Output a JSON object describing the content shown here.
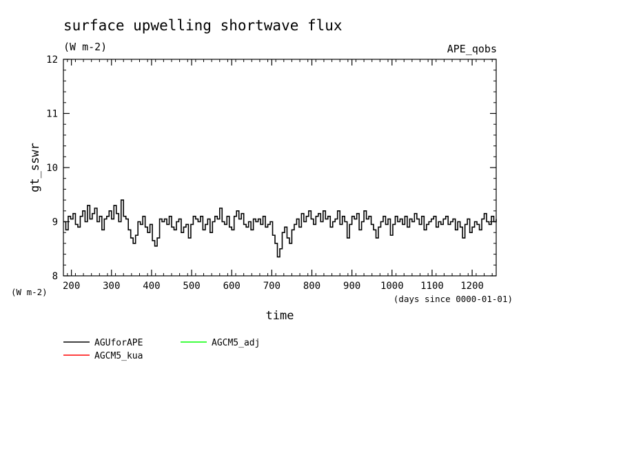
{
  "header": {
    "title": "surface upwelling shortwave flux",
    "units": "(W m-2)",
    "experiment": "APE_qobs"
  },
  "axis": {
    "ylabel": "gt_sswr",
    "yunits": "(W m-2)",
    "xlabel": "time",
    "xunits": "(days since 0000-01-01)"
  },
  "chart_data": {
    "type": "line",
    "title": "surface upwelling shortwave flux",
    "xlabel": "time",
    "ylabel": "gt_sswr",
    "xlim": [
      180,
      1260
    ],
    "ylim": [
      8,
      12
    ],
    "xticks": [
      200,
      300,
      400,
      500,
      600,
      700,
      800,
      900,
      1000,
      1100,
      1200
    ],
    "yticks": [
      8,
      9,
      10,
      11,
      12
    ],
    "grid": false,
    "legend_position": "bottom-left",
    "series": [
      {
        "name": "AGUforAPE",
        "color": "#000000",
        "x": [
          180,
          186,
          192,
          198,
          204,
          210,
          216,
          222,
          228,
          234,
          240,
          246,
          252,
          258,
          264,
          270,
          276,
          282,
          288,
          294,
          300,
          306,
          312,
          318,
          324,
          330,
          336,
          342,
          348,
          354,
          360,
          366,
          372,
          378,
          384,
          390,
          396,
          402,
          408,
          414,
          420,
          426,
          432,
          438,
          444,
          450,
          456,
          462,
          468,
          474,
          480,
          486,
          492,
          498,
          504,
          510,
          516,
          522,
          528,
          534,
          540,
          546,
          552,
          558,
          564,
          570,
          576,
          582,
          588,
          594,
          600,
          606,
          612,
          618,
          624,
          630,
          636,
          642,
          648,
          654,
          660,
          666,
          672,
          678,
          684,
          690,
          696,
          702,
          708,
          714,
          720,
          726,
          732,
          738,
          744,
          750,
          756,
          762,
          768,
          774,
          780,
          786,
          792,
          798,
          804,
          810,
          816,
          822,
          828,
          834,
          840,
          846,
          852,
          858,
          864,
          870,
          876,
          882,
          888,
          894,
          900,
          906,
          912,
          918,
          924,
          930,
          936,
          942,
          948,
          954,
          960,
          966,
          972,
          978,
          984,
          990,
          996,
          1002,
          1008,
          1014,
          1020,
          1026,
          1032,
          1038,
          1044,
          1050,
          1056,
          1062,
          1068,
          1074,
          1080,
          1086,
          1092,
          1098,
          1104,
          1110,
          1116,
          1122,
          1128,
          1134,
          1140,
          1146,
          1152,
          1158,
          1164,
          1170,
          1176,
          1182,
          1188,
          1194,
          1200,
          1206,
          1212,
          1218,
          1224,
          1230,
          1236,
          1242,
          1248,
          1254,
          1260
        ],
        "values": [
          9.0,
          8.85,
          9.1,
          9.05,
          9.15,
          8.95,
          8.9,
          9.1,
          9.2,
          9.0,
          9.3,
          9.05,
          9.15,
          9.25,
          9.0,
          9.1,
          8.85,
          9.05,
          9.1,
          9.2,
          9.05,
          9.3,
          9.15,
          9.0,
          9.4,
          9.1,
          9.05,
          8.85,
          8.7,
          8.6,
          8.75,
          9.0,
          8.95,
          9.1,
          8.9,
          8.8,
          8.95,
          8.65,
          8.55,
          8.7,
          9.05,
          9.0,
          9.05,
          8.95,
          9.1,
          8.9,
          8.85,
          9.0,
          9.05,
          8.8,
          8.9,
          8.95,
          8.7,
          8.95,
          9.1,
          9.05,
          9.0,
          9.1,
          8.85,
          8.95,
          9.05,
          8.8,
          9.0,
          9.1,
          9.05,
          9.25,
          9.0,
          8.95,
          9.1,
          8.9,
          8.85,
          9.1,
          9.2,
          9.05,
          9.15,
          8.95,
          8.9,
          9.0,
          8.85,
          9.05,
          9.0,
          9.05,
          8.95,
          9.1,
          8.9,
          8.95,
          9.0,
          8.75,
          8.6,
          8.35,
          8.5,
          8.8,
          8.9,
          8.7,
          8.6,
          8.85,
          8.95,
          9.05,
          8.9,
          9.15,
          9.0,
          9.1,
          9.2,
          9.05,
          8.95,
          9.1,
          9.15,
          9.0,
          9.2,
          9.05,
          9.1,
          8.9,
          9.0,
          9.05,
          9.2,
          8.95,
          9.1,
          9.0,
          8.7,
          8.95,
          9.1,
          9.05,
          9.15,
          8.85,
          9.0,
          9.2,
          9.05,
          9.1,
          8.95,
          8.85,
          8.7,
          8.9,
          9.0,
          9.1,
          8.95,
          9.05,
          8.75,
          8.95,
          9.1,
          9.0,
          9.05,
          8.95,
          9.1,
          8.9,
          9.05,
          9.0,
          9.15,
          9.05,
          8.95,
          9.1,
          8.85,
          8.95,
          9.0,
          9.05,
          9.1,
          8.9,
          9.0,
          8.95,
          9.05,
          9.1,
          8.95,
          9.0,
          9.05,
          8.85,
          9.0,
          8.9,
          8.7,
          8.95,
          9.05,
          8.8,
          8.9,
          9.0,
          8.95,
          8.85,
          9.05,
          9.15,
          9.0,
          8.95,
          9.1,
          9.0,
          9.05
        ]
      },
      {
        "name": "AGCM5_kua",
        "color": "#ff0000",
        "x": [],
        "values": []
      },
      {
        "name": "AGCM5_adj",
        "color": "#00ff00",
        "x": [],
        "values": []
      }
    ]
  }
}
